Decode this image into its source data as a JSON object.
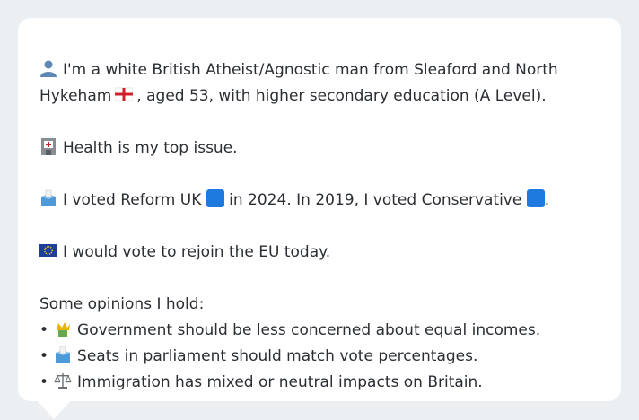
{
  "persona": {
    "intro_a": "I'm a white British Atheist/Agnostic man from Sleaford and North",
    "intro_b1": "Hykeham",
    "intro_b2": ", aged 53, with higher secondary education (A Level).",
    "health": "Health is my top issue.",
    "vote_a": "I voted Reform UK",
    "vote_b": "in 2024. In 2019, I voted Conservative",
    "vote_c": ".",
    "eu": "I would vote to rejoin the EU today.",
    "opinions_heading": "Some opinions I hold:",
    "bullet_char": "•",
    "opinions": [
      "Government should be less concerned about equal incomes.",
      "Seats in parliament should match vote percentages.",
      "Immigration has mixed or neutral impacts on Britain."
    ]
  },
  "icons": {
    "person": "person-icon",
    "flag": "england-flag-icon",
    "hospital": "hospital-icon",
    "ballot": "ballot-box-icon",
    "reform_square": "blue-square-icon",
    "conservative_square": "blue-square-icon",
    "eu": "eu-flag-icon",
    "opinion_1": "crown-money-icon",
    "opinion_2": "ballot-box-icon",
    "opinion_3": "scales-icon"
  },
  "colors": {
    "background": "#eceff2",
    "card": "#ffffff",
    "text": "#2b2f33",
    "party_square": "#1f7ae0"
  }
}
